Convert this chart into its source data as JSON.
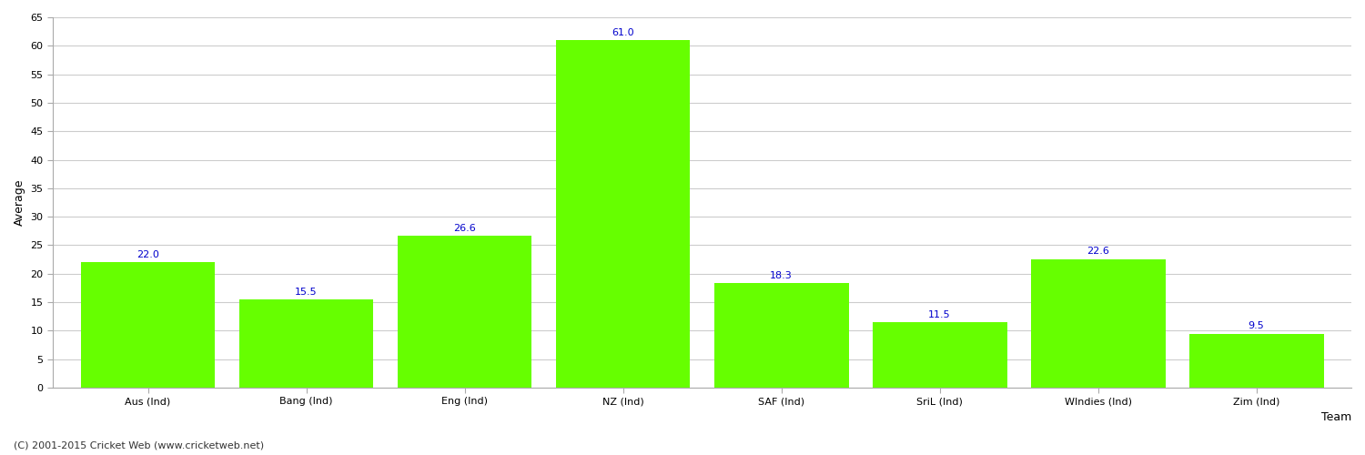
{
  "categories": [
    "Aus (Ind)",
    "Bang (Ind)",
    "Eng (Ind)",
    "NZ (Ind)",
    "SAF (Ind)",
    "SriL (Ind)",
    "WIndies (Ind)",
    "Zim (Ind)"
  ],
  "values": [
    22.0,
    15.5,
    26.6,
    61.0,
    18.3,
    11.5,
    22.6,
    9.5
  ],
  "bar_color": "#66ff00",
  "bar_edge_color": "#66ff00",
  "xlabel": "Team",
  "ylabel": "Average",
  "ylim": [
    0,
    65
  ],
  "yticks": [
    0,
    5,
    10,
    15,
    20,
    25,
    30,
    35,
    40,
    45,
    50,
    55,
    60,
    65
  ],
  "label_color": "#0000cc",
  "label_fontsize": 8,
  "tick_fontsize": 8,
  "grid_color": "#cccccc",
  "background_color": "#ffffff",
  "footer_text": "(C) 2001-2015 Cricket Web (www.cricketweb.net)",
  "footer_fontsize": 8,
  "ylabel_fontsize": 9,
  "xlabel_fontsize": 9,
  "bar_width": 0.85
}
